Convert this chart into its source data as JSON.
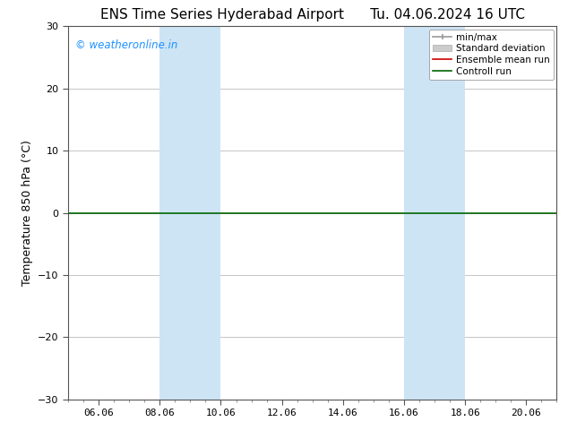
{
  "title_left": "ENS Time Series Hyderabad Airport",
  "title_right": "Tu. 04.06.2024 16 UTC",
  "ylabel": "Temperature 850 hPa (°C)",
  "ylim": [
    -30,
    30
  ],
  "yticks": [
    -30,
    -20,
    -10,
    0,
    10,
    20,
    30
  ],
  "x_min": 0.0,
  "x_max": 16.0,
  "xtick_labels": [
    "06.06",
    "08.06",
    "10.06",
    "12.06",
    "14.06",
    "16.06",
    "18.06",
    "20.06"
  ],
  "xtick_positions": [
    1.0,
    3.0,
    5.0,
    7.0,
    9.0,
    11.0,
    13.0,
    15.0
  ],
  "shaded_bands": [
    {
      "x_start": 3.0,
      "x_end": 5.0
    },
    {
      "x_start": 11.0,
      "x_end": 13.0
    }
  ],
  "control_run_y": 0.0,
  "ensemble_mean_y": 0.0,
  "shaded_color": "#cde4f5",
  "shaded_alpha": 1.0,
  "control_run_color": "#006400",
  "ensemble_mean_color": "#cc0000",
  "minmax_color": "#999999",
  "stddev_color": "#cccccc",
  "watermark_text": "© weatheronline.in",
  "watermark_color": "#1e90ff",
  "legend_entries": [
    "min/max",
    "Standard deviation",
    "Ensemble mean run",
    "Controll run"
  ],
  "bg_color": "#ffffff",
  "grid_color": "#bbbbbb",
  "title_fontsize": 11,
  "label_fontsize": 9,
  "tick_fontsize": 8,
  "legend_fontsize": 7.5
}
